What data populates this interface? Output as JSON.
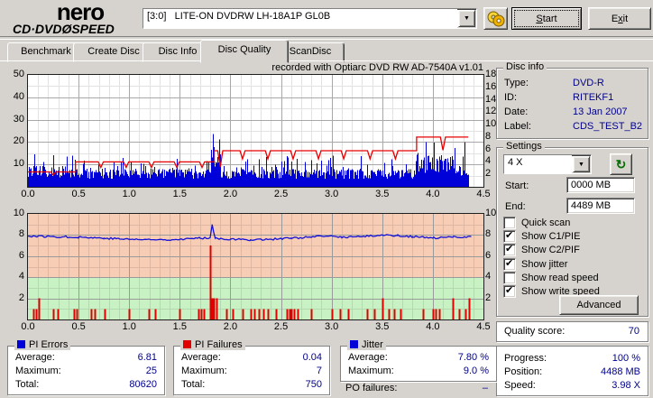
{
  "header": {
    "logo_line1": "nero",
    "logo_line2": "CD·DVDØSPEED",
    "drive_combo": "[3:0]   LITE-ON DVDRW LH-18A1P GL0B",
    "start_button": {
      "label": "Start",
      "accesskey": "S"
    },
    "exit_button": {
      "label": "Exit",
      "accesskey": "x"
    }
  },
  "tabs": [
    {
      "label": "Benchmark",
      "active": false
    },
    {
      "label": "Create Disc",
      "active": false
    },
    {
      "label": "Disc Info",
      "active": false
    },
    {
      "label": "Disc Quality",
      "active": true
    },
    {
      "label": "ScanDisc",
      "active": false
    }
  ],
  "chart_data": [
    {
      "type": "area",
      "title": "recorded with Optiarc DVD RW AD-7540A  v1.01",
      "x": {
        "min": 0,
        "max": 4.5,
        "ticks": [
          "0.0",
          "0.5",
          "1.0",
          "1.5",
          "2.0",
          "2.5",
          "3.0",
          "3.5",
          "4.0",
          "4.5"
        ],
        "unit": "GB"
      },
      "y_left": {
        "label": "PI Errors",
        "min": 0,
        "max": 50,
        "ticks": [
          50,
          40,
          30,
          20,
          10
        ]
      },
      "y_right": {
        "label": "Speed X",
        "min": 0,
        "max": 18,
        "ticks": [
          18,
          16,
          14,
          12,
          10,
          8,
          6,
          4,
          2
        ]
      },
      "data_end_x": 4.35,
      "pi_errors": {
        "color": "#0000d8",
        "average": 6.81,
        "maximum": 25,
        "total": 80620,
        "segments": [
          {
            "from": 0.0,
            "to": 0.47,
            "mean": 7.5,
            "peak": 15
          },
          {
            "from": 0.47,
            "to": 1.76,
            "mean": 6.5,
            "peak": 13
          },
          {
            "from": 1.76,
            "to": 1.9,
            "mean": 11,
            "peak": 22
          },
          {
            "from": 1.9,
            "to": 3.84,
            "mean": 6.5,
            "peak": 14
          },
          {
            "from": 3.84,
            "to": 4.2,
            "mean": 11.5,
            "peak": 20
          },
          {
            "from": 4.2,
            "to": 4.35,
            "mean": 9,
            "peak": 18
          }
        ],
        "spikes": [
          {
            "x": 1.823,
            "value": 23.5
          },
          {
            "x": 4.31,
            "value": 20
          }
        ]
      },
      "write_speed": {
        "color": "#e80000",
        "axis": "right",
        "segments": [
          {
            "from": 0.0,
            "to": 0.47,
            "level": 2.4
          },
          {
            "from": 0.47,
            "to": 1.84,
            "level": 4.0
          },
          {
            "from": 1.84,
            "to": 3.84,
            "level": 5.8
          },
          {
            "from": 3.84,
            "to": 4.35,
            "level": 8.0
          }
        ],
        "dips": [
          {
            "x": 0.25,
            "to": 1.9
          },
          {
            "x": 0.72,
            "to": 3.1
          },
          {
            "x": 0.97,
            "to": 3.1
          },
          {
            "x": 1.22,
            "to": 3.1
          },
          {
            "x": 1.47,
            "to": 3.1
          },
          {
            "x": 1.72,
            "to": 3.1
          },
          {
            "x": 1.9,
            "to": 3.2
          },
          {
            "x": 2.12,
            "to": 4.5
          },
          {
            "x": 2.37,
            "to": 4.5
          },
          {
            "x": 2.62,
            "to": 4.5
          },
          {
            "x": 2.87,
            "to": 4.5
          },
          {
            "x": 3.12,
            "to": 4.5
          },
          {
            "x": 3.38,
            "to": 4.5
          },
          {
            "x": 3.63,
            "to": 4.5
          },
          {
            "x": 4.1,
            "to": 5.9
          }
        ]
      }
    },
    {
      "type": "line",
      "x": {
        "min": 0,
        "max": 4.5,
        "ticks": [
          "0.0",
          "0.5",
          "1.0",
          "1.5",
          "2.0",
          "2.5",
          "3.0",
          "3.5",
          "4.0",
          "4.5"
        ],
        "unit": "GB"
      },
      "y": {
        "min": 0,
        "max": 10,
        "ticks": [
          10,
          8,
          6,
          4,
          2
        ]
      },
      "bands": [
        {
          "from": 4,
          "to": 10,
          "color": "#f8cdb5"
        },
        {
          "from": 0,
          "to": 4,
          "color": "#c9f2c4"
        }
      ],
      "data_end_x": 4.38,
      "jitter": {
        "color": "#1010d8",
        "average": "7.80 %",
        "maximum": "9.0 %",
        "points": [
          [
            0,
            7.9
          ],
          [
            0.25,
            7.85
          ],
          [
            0.5,
            7.8
          ],
          [
            0.75,
            7.7
          ],
          [
            1.0,
            7.6
          ],
          [
            1.25,
            7.55
          ],
          [
            1.5,
            7.6
          ],
          [
            1.7,
            7.7
          ],
          [
            1.8,
            7.75
          ],
          [
            1.82,
            9.0
          ],
          [
            1.85,
            7.7
          ],
          [
            2.0,
            7.6
          ],
          [
            2.2,
            7.55
          ],
          [
            2.4,
            7.6
          ],
          [
            2.6,
            7.7
          ],
          [
            2.8,
            7.8
          ],
          [
            2.95,
            7.9
          ],
          [
            3.1,
            7.8
          ],
          [
            3.3,
            7.85
          ],
          [
            3.5,
            8.0
          ],
          [
            3.65,
            7.95
          ],
          [
            3.8,
            7.85
          ],
          [
            4.0,
            7.7
          ],
          [
            4.2,
            7.8
          ],
          [
            4.38,
            7.85
          ]
        ]
      },
      "pi_failures": {
        "color": "#e00000",
        "average": 0.04,
        "maximum": 7,
        "total": 750,
        "bars": [
          [
            0.05,
            1
          ],
          [
            0.08,
            1
          ],
          [
            0.11,
            2
          ],
          [
            0.25,
            1
          ],
          [
            0.29,
            1
          ],
          [
            0.45,
            1
          ],
          [
            0.48,
            1
          ],
          [
            0.62,
            1
          ],
          [
            0.66,
            1
          ],
          [
            0.76,
            1
          ],
          [
            1.0,
            1
          ],
          [
            1.19,
            1
          ],
          [
            1.26,
            1
          ],
          [
            1.5,
            1
          ],
          [
            1.68,
            1
          ],
          [
            1.71,
            1
          ],
          [
            1.74,
            1
          ],
          [
            1.8,
            7
          ],
          [
            1.82,
            2
          ],
          [
            1.84,
            2
          ],
          [
            1.86,
            2
          ],
          [
            1.96,
            1
          ],
          [
            2.02,
            1
          ],
          [
            2.12,
            1
          ],
          [
            2.2,
            1
          ],
          [
            2.24,
            1
          ],
          [
            2.28,
            1
          ],
          [
            2.33,
            1
          ],
          [
            2.37,
            1
          ],
          [
            2.45,
            1
          ],
          [
            2.56,
            1
          ],
          [
            2.58,
            1
          ],
          [
            2.6,
            1
          ],
          [
            2.63,
            1
          ],
          [
            2.66,
            1
          ],
          [
            2.8,
            1
          ],
          [
            3.0,
            1
          ],
          [
            3.08,
            1
          ],
          [
            3.16,
            1
          ],
          [
            3.35,
            1
          ],
          [
            3.42,
            1
          ],
          [
            3.5,
            2
          ],
          [
            3.56,
            1
          ],
          [
            3.62,
            1
          ],
          [
            3.68,
            1
          ],
          [
            3.9,
            1
          ],
          [
            4.0,
            1
          ],
          [
            4.03,
            1
          ],
          [
            4.06,
            1
          ],
          [
            4.2,
            2
          ],
          [
            4.26,
            1
          ],
          [
            4.32,
            1
          ],
          [
            4.36,
            2
          ]
        ]
      }
    }
  ],
  "disc_info": {
    "title": "Disc info",
    "rows": [
      {
        "label": "Type:",
        "value": "DVD-R"
      },
      {
        "label": "ID:",
        "value": "RITEKF1"
      },
      {
        "label": "Date:",
        "value": "13 Jan 2007"
      },
      {
        "label": "Label:",
        "value": "CDS_TEST_B2"
      }
    ]
  },
  "settings": {
    "title": "Settings",
    "speed_select": "4 X",
    "refresh_icon": "↻",
    "start_label": "Start:",
    "start_value": "0000 MB",
    "end_label": "End:",
    "end_value": "4489 MB",
    "checkboxes": [
      {
        "label": "Quick scan",
        "checked": false
      },
      {
        "label": "Show C1/PIE",
        "checked": true
      },
      {
        "label": "Show C2/PIF",
        "checked": true
      },
      {
        "label": "Show jitter",
        "checked": true
      },
      {
        "label": "Show read speed",
        "checked": false
      },
      {
        "label": "Show write speed",
        "checked": true
      }
    ],
    "advanced_button": "Advanced"
  },
  "quality": {
    "label": "Quality score:",
    "value": "70"
  },
  "progress": {
    "rows": [
      {
        "label": "Progress:",
        "value": "100 %"
      },
      {
        "label": "Position:",
        "value": "4488 MB"
      },
      {
        "label": "Speed:",
        "value": "3.98 X"
      }
    ]
  },
  "stats": [
    {
      "title": "PI Errors",
      "marker_color": "#0000d8",
      "rows": [
        {
          "label": "Average:",
          "value": "6.81"
        },
        {
          "label": "Maximum:",
          "value": "25"
        },
        {
          "label": "Total:",
          "value": "80620"
        }
      ]
    },
    {
      "title": "PI Failures",
      "marker_color": "#e00000",
      "rows": [
        {
          "label": "Average:",
          "value": "0.04"
        },
        {
          "label": "Maximum:",
          "value": "7"
        },
        {
          "label": "Total:",
          "value": "750"
        }
      ]
    },
    {
      "title": "Jitter",
      "marker_color": "#0000d8",
      "rows": [
        {
          "label": "Average:",
          "value": "7.80 %"
        },
        {
          "label": "Maximum:",
          "value": "9.0 %"
        }
      ]
    }
  ],
  "po_failures": {
    "label": "PO failures:",
    "value": "–"
  }
}
